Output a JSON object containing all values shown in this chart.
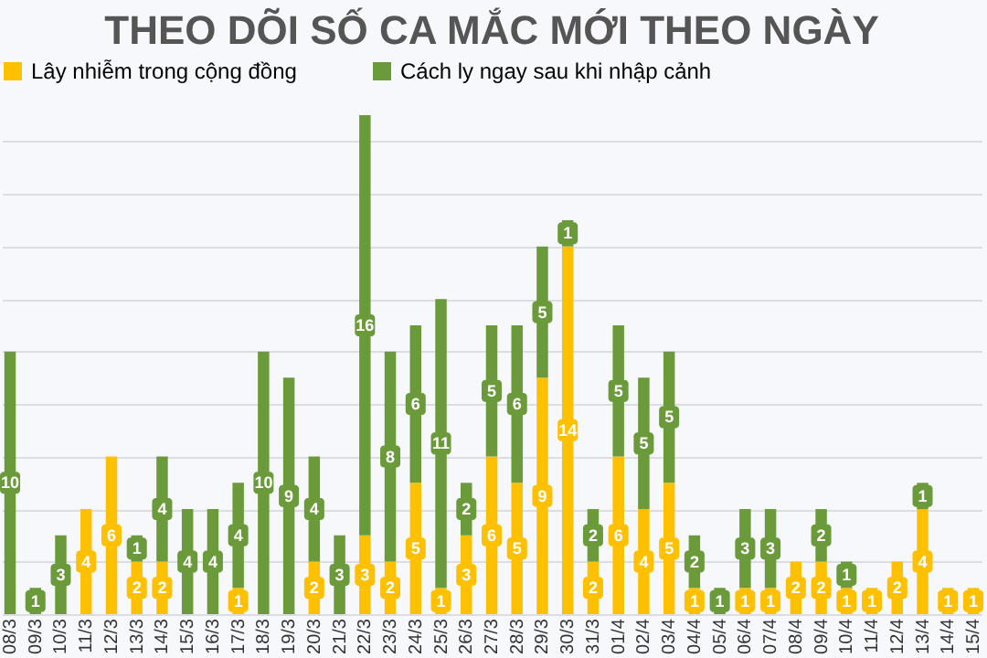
{
  "chart_data": {
    "type": "bar",
    "title": "THEO DÕI SỐ CA MẮC MỚI THEO NGÀY",
    "stacked": true,
    "data_labels": true,
    "legend": "top",
    "grid": "y",
    "tick_labels": "x",
    "categories": [
      "08/3",
      "09/3",
      "10/3",
      "11/3",
      "12/3",
      "13/3",
      "14/3",
      "15/3",
      "16/3",
      "17/3",
      "18/3",
      "19/3",
      "20/3",
      "21/3",
      "22/3",
      "23/3",
      "24/3",
      "25/3",
      "26/3",
      "27/3",
      "28/3",
      "29/3",
      "30/3",
      "31/3",
      "01/4",
      "02/4",
      "03/4",
      "04/4",
      "05/4",
      "06/4",
      "07/4",
      "08/4",
      "09/4",
      "10/4",
      "11/4",
      "12/4",
      "13/4",
      "14/4",
      "15/4"
    ],
    "series": [
      {
        "name": "Lây nhiễm trong cộng đồng",
        "color": "#ffc000",
        "values": [
          null,
          null,
          null,
          4,
          6,
          2,
          2,
          null,
          null,
          1,
          null,
          null,
          2,
          null,
          3,
          2,
          5,
          1,
          3,
          6,
          5,
          9,
          14,
          2,
          6,
          4,
          5,
          1,
          null,
          1,
          1,
          2,
          2,
          1,
          1,
          2,
          4,
          1,
          1
        ]
      },
      {
        "name": "Cách ly ngay sau khi nhập cảnh",
        "color": "#6a9a3a",
        "values": [
          10,
          1,
          3,
          null,
          null,
          1,
          4,
          4,
          4,
          4,
          10,
          9,
          4,
          3,
          16,
          8,
          6,
          11,
          2,
          5,
          6,
          5,
          1,
          2,
          5,
          5,
          5,
          2,
          1,
          3,
          3,
          null,
          2,
          1,
          null,
          null,
          1,
          null,
          null
        ]
      }
    ]
  }
}
